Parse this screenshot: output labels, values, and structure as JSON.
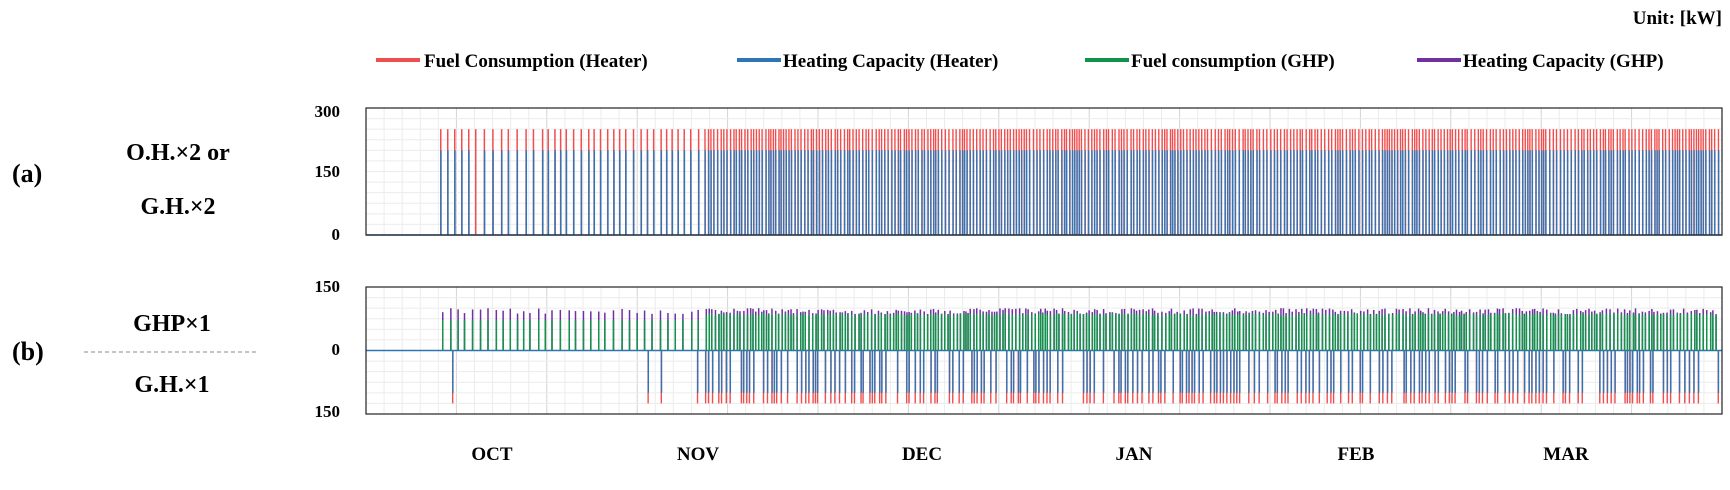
{
  "unit_label": "Unit: [kW]",
  "colors": {
    "fuel_heater": "#f04e4e",
    "cap_heater": "#2f74b5",
    "fuel_ghp": "#11934a",
    "cap_ghp": "#7030a0"
  },
  "legend": [
    {
      "label": "Fuel Consumption (Heater)",
      "color": "#f04e4e"
    },
    {
      "label": "Heating Capacity (Heater)",
      "color": "#2f74b5"
    },
    {
      "label": "Fuel consumption (GHP)",
      "color": "#11934a"
    },
    {
      "label": "Heating Capacity (GHP)",
      "color": "#7030a0"
    }
  ],
  "chart_data": [
    {
      "type": "line",
      "panel_label": "(a)",
      "row_label_lines": [
        "O.H.×2 or",
        "G.H.×2"
      ],
      "x_categories": [
        "OCT",
        "NOV",
        "DEC",
        "JAN",
        "FEB",
        "MAR"
      ],
      "y_ticks": [
        "300",
        "150",
        "0"
      ],
      "ylim": [
        0,
        300
      ],
      "series": [
        {
          "name": "Fuel Consumption (Heater)",
          "key": "fuel_heater",
          "on_value": 250,
          "off_value": 0
        },
        {
          "name": "Heating Capacity (Heater)",
          "key": "cap_heater",
          "on_value": 200,
          "off_value": 0
        }
      ],
      "grid": true
    },
    {
      "type": "line",
      "panel_label": "(b)",
      "row_label_top": "GHP×1",
      "row_label_bottom": "G.H.×1",
      "x_categories": [
        "OCT",
        "NOV",
        "DEC",
        "JAN",
        "FEB",
        "MAR"
      ],
      "y_ticks": [
        "150",
        "0",
        "150"
      ],
      "ylim": [
        -150,
        150
      ],
      "series": [
        {
          "name": "Fuel consumption (GHP)",
          "key": "fuel_ghp",
          "on_value": 88,
          "off_value": 0
        },
        {
          "name": "Heating Capacity (GHP)",
          "key": "cap_ghp",
          "on_value": 100,
          "off_value": 0
        },
        {
          "name": "Fuel Consumption (Heater)",
          "key": "fuel_heater",
          "on_value": -125,
          "off_value": 0
        },
        {
          "name": "Heating Capacity (Heater)",
          "key": "cap_heater",
          "on_value": -100,
          "off_value": 0
        }
      ],
      "grid": true
    }
  ]
}
